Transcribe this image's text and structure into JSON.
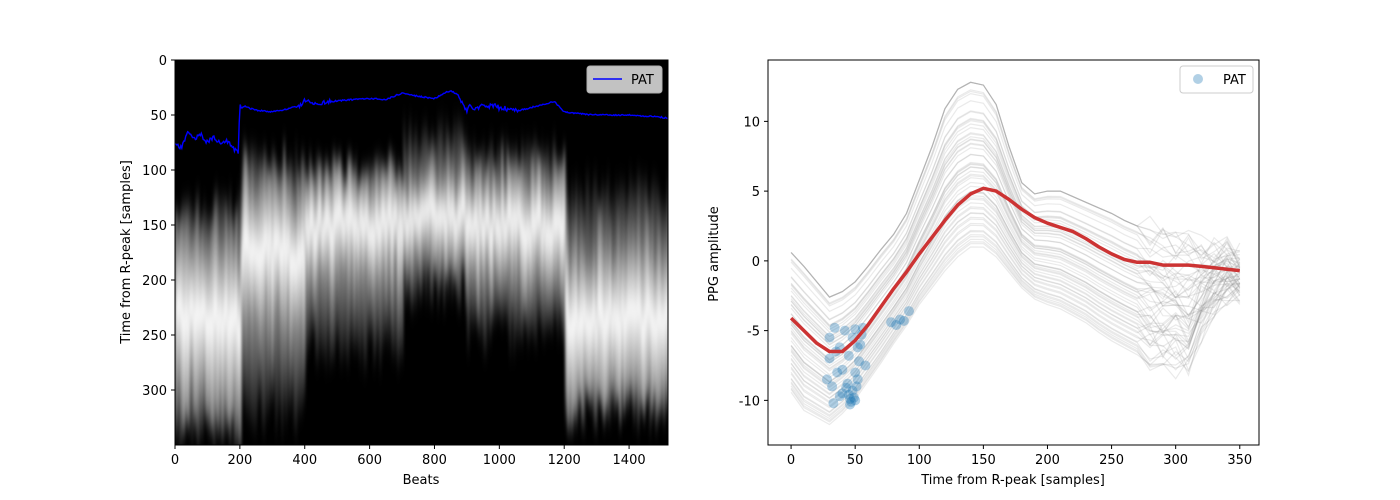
{
  "chart_data": [
    {
      "type": "heatmap",
      "xlabel": "Beats",
      "ylabel": "Time from R-peak [samples]",
      "xlim": [
        0,
        1520
      ],
      "ylim": [
        350,
        0
      ],
      "y_inverted": true,
      "xticks": [
        0,
        200,
        400,
        600,
        800,
        1000,
        1200,
        1400
      ],
      "yticks": [
        0,
        50,
        100,
        150,
        200,
        250,
        300
      ],
      "background_color": "#000000",
      "colormap": "gray",
      "legend": {
        "placement": "top-right",
        "entries": [
          "PAT"
        ]
      },
      "series": [
        {
          "name": "PAT",
          "style": "line",
          "color": "#0000ff",
          "x": [
            0,
            20,
            40,
            60,
            80,
            100,
            120,
            140,
            160,
            180,
            195,
            200,
            205,
            215,
            230,
            260,
            300,
            340,
            380,
            400,
            430,
            460,
            500,
            550,
            600,
            650,
            700,
            750,
            800,
            830,
            850,
            870,
            890,
            900,
            910,
            930,
            960,
            1000,
            1030,
            1060,
            1100,
            1140,
            1170,
            1200,
            1250,
            1300,
            1350,
            1400,
            1450,
            1500,
            1520
          ],
          "y": [
            77,
            80,
            65,
            72,
            68,
            75,
            70,
            76,
            74,
            80,
            85,
            40,
            44,
            42,
            44,
            46,
            47,
            45,
            42,
            37,
            40,
            39,
            37,
            36,
            35,
            36,
            30,
            33,
            35,
            30,
            28,
            31,
            40,
            47,
            42,
            44,
            41,
            43,
            45,
            46,
            43,
            40,
            38,
            47,
            49,
            50,
            50,
            50,
            51,
            52,
            53
          ]
        }
      ],
      "intensity_bands": [
        {
          "x0": 0,
          "x1": 200,
          "y_center": 235,
          "spread": 75,
          "top": 125,
          "bottom": 345
        },
        {
          "x0": 200,
          "x1": 400,
          "y_center": 175,
          "spread": 65,
          "top": 85,
          "bottom": 330
        },
        {
          "x0": 400,
          "x1": 700,
          "y_center": 150,
          "spread": 50,
          "top": 95,
          "bottom": 270
        },
        {
          "x0": 700,
          "x1": 900,
          "y_center": 140,
          "spread": 40,
          "top": 60,
          "bottom": 215
        },
        {
          "x0": 900,
          "x1": 1200,
          "y_center": 150,
          "spread": 50,
          "top": 80,
          "bottom": 255
        },
        {
          "x0": 1200,
          "x1": 1520,
          "y_center": 235,
          "spread": 70,
          "top": 110,
          "bottom": 325
        }
      ]
    },
    {
      "type": "line",
      "xlabel": "Time from R-peak [samples]",
      "ylabel": "PPG amplitude",
      "xlim": [
        -18,
        365
      ],
      "ylim": [
        -13.2,
        14.4
      ],
      "xticks": [
        0,
        50,
        100,
        150,
        200,
        250,
        300,
        350
      ],
      "yticks": [
        -10,
        -5,
        0,
        5,
        10
      ],
      "legend": {
        "placement": "top-right",
        "entries": [
          "PAT"
        ]
      },
      "series": [
        {
          "name": "",
          "style": "line",
          "role": "mean beat",
          "color": "#cc3333",
          "x": [
            0,
            10,
            20,
            30,
            40,
            50,
            60,
            70,
            80,
            90,
            100,
            110,
            120,
            130,
            140,
            150,
            160,
            170,
            180,
            190,
            200,
            210,
            220,
            230,
            240,
            250,
            260,
            270,
            280,
            290,
            300,
            310,
            320,
            330,
            340,
            350
          ],
          "y": [
            -4.1,
            -5.0,
            -5.9,
            -6.5,
            -6.5,
            -5.7,
            -4.6,
            -3.3,
            -2.0,
            -0.8,
            0.5,
            1.7,
            2.9,
            4.0,
            4.8,
            5.2,
            5.0,
            4.4,
            3.7,
            3.1,
            2.7,
            2.4,
            2.1,
            1.6,
            1.0,
            0.5,
            0.1,
            -0.1,
            -0.1,
            -0.3,
            -0.3,
            -0.3,
            -0.4,
            -0.5,
            -0.6,
            -0.7
          ]
        },
        {
          "name": "PAT",
          "style": "scatter",
          "color": "#1f77b4",
          "alpha": 0.35,
          "x": [
            28,
            30,
            32,
            34,
            36,
            38,
            40,
            42,
            44,
            45,
            46,
            47,
            48,
            49,
            50,
            51,
            52,
            53,
            54,
            55,
            56,
            58,
            30,
            35,
            40,
            45,
            48,
            50,
            52,
            33,
            38,
            43,
            46,
            50,
            78,
            82,
            85,
            88,
            92
          ],
          "y": [
            -8.5,
            -5.5,
            -9.0,
            -4.8,
            -8.0,
            -6.2,
            -9.5,
            -5.0,
            -8.8,
            -9.6,
            -9.9,
            -10.1,
            -9.3,
            -9.8,
            -10.0,
            -9.0,
            -8.5,
            -7.2,
            -6.0,
            -5.3,
            -4.8,
            -7.5,
            -7.0,
            -6.5,
            -7.8,
            -6.8,
            -5.5,
            -4.9,
            -6.2,
            -10.2,
            -9.7,
            -9.1,
            -10.3,
            -8.0,
            -4.4,
            -4.6,
            -4.2,
            -4.3,
            -3.6
          ]
        }
      ],
      "beat_overlay": {
        "color": "#808080",
        "opacity": 0.12,
        "count": 60,
        "x": [
          0,
          10,
          20,
          30,
          40,
          50,
          60,
          70,
          80,
          90,
          100,
          110,
          120,
          130,
          140,
          150,
          160,
          170,
          180,
          190,
          200,
          210,
          220,
          230,
          240,
          250,
          260,
          270,
          280,
          290,
          300,
          310,
          320,
          330,
          340,
          350
        ],
        "low": [
          -9.5,
          -10.8,
          -11.3,
          -11.8,
          -11.0,
          -10.0,
          -8.7,
          -7.4,
          -6.0,
          -4.7,
          -3.2,
          -2.0,
          -0.8,
          0.2,
          0.9,
          0.9,
          0.2,
          -0.9,
          -2.0,
          -2.8,
          -3.2,
          -3.5,
          -4.0,
          -4.5,
          -5.2,
          -5.8,
          -6.3,
          -6.8,
          -7.2,
          -7.6,
          -7.8,
          -7.9,
          -5.5,
          -3.5,
          -2.5,
          -2.5
        ],
        "high": [
          0.6,
          -0.4,
          -1.5,
          -2.6,
          -2.2,
          -1.5,
          -0.4,
          0.8,
          1.9,
          3.4,
          5.8,
          8.2,
          10.9,
          12.3,
          12.8,
          12.6,
          11.2,
          8.2,
          5.6,
          4.8,
          5.0,
          5.0,
          4.6,
          4.2,
          3.8,
          3.4,
          2.9,
          2.5,
          2.2,
          1.9,
          1.6,
          1.3,
          1.0,
          0.8,
          0.7,
          0.5
        ]
      }
    }
  ]
}
